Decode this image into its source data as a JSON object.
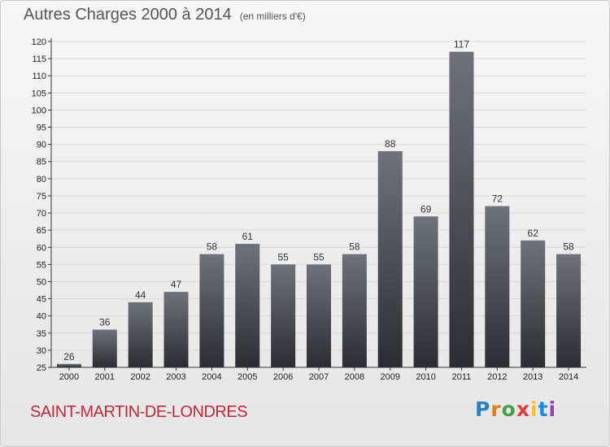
{
  "header": {
    "title": "Autres Charges 2000 à 2014",
    "subtitle": "(en milliers d'€)"
  },
  "footer": {
    "commune": "SAINT-MARTIN-DE-LONDRES",
    "logo": "Proxiti",
    "logo_colors": [
      "#2e7fc2",
      "#e37d1a",
      "#43a047",
      "#e53935",
      "#fbc02d",
      "#1e88e5",
      "#8e44ad"
    ]
  },
  "colors": {
    "bar_top": "#6e7379",
    "bar_bottom": "#2a2e33",
    "axis": "#333333",
    "grid": "#d8d8d8",
    "commune": "#c0283c"
  },
  "chart_data": {
    "type": "bar",
    "title": "Autres Charges 2000 à 2014",
    "subtitle": "(en milliers d'€)",
    "categories": [
      "2000",
      "2001",
      "2002",
      "2003",
      "2004",
      "2005",
      "2006",
      "2007",
      "2008",
      "2009",
      "2010",
      "2011",
      "2012",
      "2013",
      "2014"
    ],
    "values": [
      26,
      36,
      44,
      47,
      58,
      61,
      55,
      55,
      58,
      88,
      69,
      117,
      72,
      62,
      58
    ],
    "ylim": [
      25,
      120
    ],
    "yticks": [
      25,
      30,
      35,
      40,
      45,
      50,
      55,
      60,
      65,
      70,
      75,
      80,
      85,
      90,
      95,
      100,
      105,
      110,
      115,
      120
    ],
    "grid": true,
    "legend": "none"
  }
}
